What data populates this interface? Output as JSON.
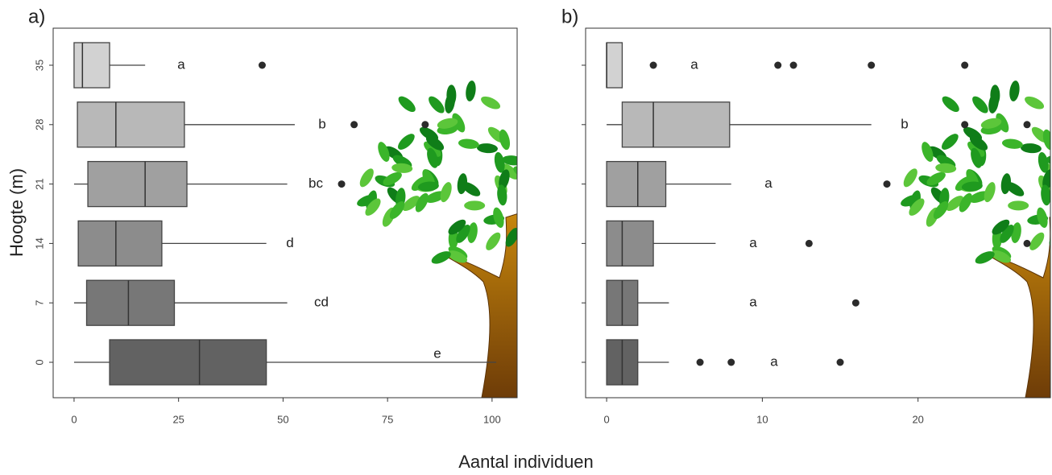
{
  "ylabel": "Hoogte (m)",
  "xlabel": "Aantal individuen",
  "chart_data": [
    {
      "type": "boxplot",
      "panel_label": "a)",
      "categories": [
        "0",
        "7",
        "14",
        "21",
        "28",
        "35"
      ],
      "boxes": [
        {
          "min": 0,
          "q1": 8.5,
          "median": 30,
          "q3": 46,
          "max": 101,
          "outliers": []
        },
        {
          "min": 0,
          "q1": 3,
          "median": 13,
          "q3": 24,
          "max": 51,
          "outliers": []
        },
        {
          "min": 1,
          "q1": 1,
          "median": 10,
          "q3": 21,
          "max": 46,
          "outliers": []
        },
        {
          "min": 0,
          "q1": 3.3,
          "median": 17,
          "q3": 27,
          "max": 51,
          "outliers": [
            64
          ]
        },
        {
          "min": 0.8,
          "q1": 0.8,
          "median": 10,
          "q3": 26.4,
          "max": 52.8,
          "outliers": [
            67,
            84
          ]
        },
        {
          "min": 0,
          "q1": 0,
          "median": 2,
          "q3": 8.5,
          "max": 17,
          "outliers": [
            45
          ]
        }
      ],
      "letters": [
        "e",
        "cd",
        "d",
        "bc",
        "b",
        "a"
      ],
      "colors": [
        "#626262",
        "#777777",
        "#8c8c8c",
        "#a0a0a0",
        "#b8b8b8",
        "#d2d2d2"
      ],
      "outlier_color": "#2b2b2b",
      "xlim": [
        -5,
        106
      ],
      "xticks": [
        0,
        25,
        50,
        75,
        100
      ]
    },
    {
      "type": "boxplot",
      "panel_label": "b)",
      "categories": [
        "0",
        "7",
        "14",
        "21",
        "28",
        "35"
      ],
      "boxes": [
        {
          "min": 0,
          "q1": 0,
          "median": 1,
          "q3": 2,
          "max": 4,
          "outliers": [
            6,
            8,
            15
          ]
        },
        {
          "min": 0,
          "q1": 0,
          "median": 1,
          "q3": 2,
          "max": 4,
          "outliers": [
            16
          ]
        },
        {
          "min": 0,
          "q1": 0,
          "median": 1,
          "q3": 3,
          "max": 7,
          "outliers": [
            13,
            27
          ]
        },
        {
          "min": 0,
          "q1": 0,
          "median": 2,
          "q3": 3.8,
          "max": 8,
          "outliers": [
            18
          ]
        },
        {
          "min": 0,
          "q1": 1,
          "median": 3,
          "q3": 7.9,
          "max": 17,
          "outliers": [
            23,
            27
          ]
        },
        {
          "min": 0,
          "q1": 0,
          "median": 0,
          "q3": 1,
          "max": 1,
          "outliers": [
            3,
            11,
            12,
            17,
            23
          ]
        }
      ],
      "letters": [
        "a",
        "a",
        "a",
        "a",
        "b",
        "a"
      ],
      "colors": [
        "#626262",
        "#777777",
        "#8c8c8c",
        "#a0a0a0",
        "#b8b8b8",
        "#d2d2d2"
      ],
      "outlier_color": "#2b2b2b",
      "xlim": [
        -1.35,
        28.5
      ],
      "xticks": [
        0,
        10,
        20
      ]
    }
  ]
}
